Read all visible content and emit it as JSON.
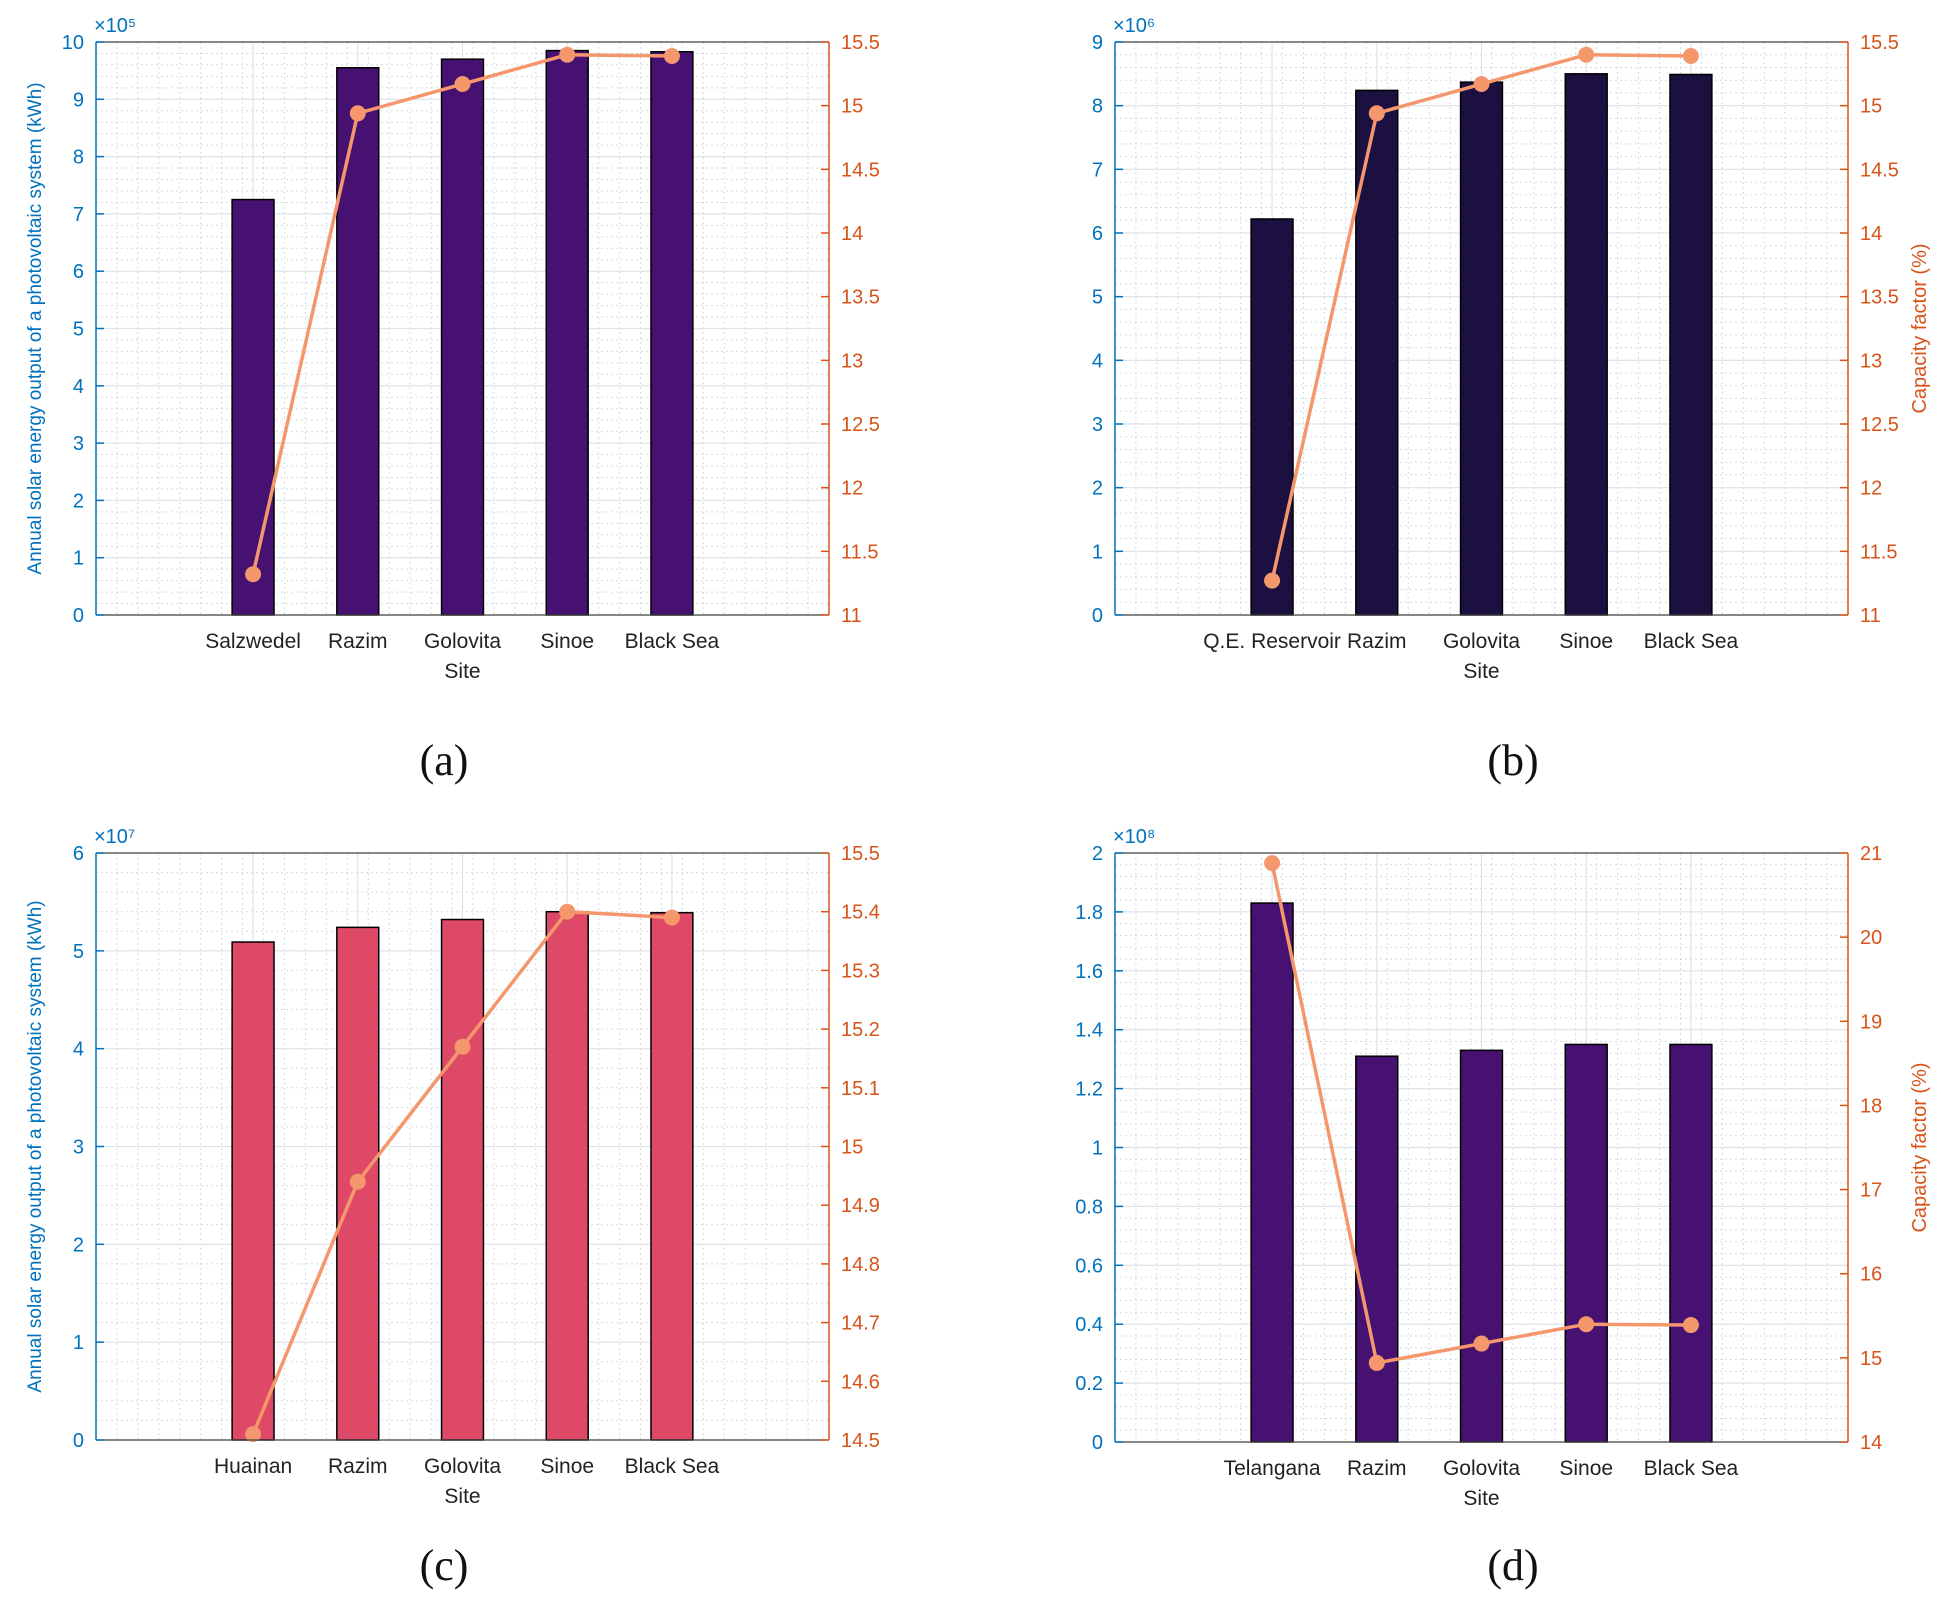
{
  "colors": {
    "left_axis": "#0072BD",
    "right_axis": "#D95319",
    "line": "#F4976C",
    "grid": "#c8d2dc",
    "text": "#222222"
  },
  "chart_data": [
    {
      "type": "bar",
      "panel_label": "(a)",
      "categories": [
        "Salzwedel",
        "Razim",
        "Golovita",
        "Sinoe",
        "Black Sea"
      ],
      "series": [
        {
          "name": "Annual solar energy output",
          "axis": "left",
          "values": [
            725000,
            955000,
            970000,
            985000,
            983000
          ]
        },
        {
          "name": "Capacity factor",
          "axis": "right",
          "type": "line",
          "values": [
            11.32,
            14.94,
            15.17,
            15.4,
            15.39
          ]
        }
      ],
      "bar_color": "#471172",
      "xlabel": "Site",
      "ylabel": "Annual solar energy output of a photovoltaic system (kWh)",
      "y2label": "",
      "exponent": "×10⁵",
      "ylim": [
        0,
        1000000
      ],
      "yscale": 100000,
      "yticks": [
        "0",
        "1",
        "2",
        "3",
        "4",
        "5",
        "6",
        "7",
        "8",
        "9",
        "10"
      ],
      "y2lim": [
        11,
        15.5
      ],
      "y2ticks": [
        "11",
        "11.5",
        "12",
        "12.5",
        "13",
        "13.5",
        "14",
        "14.5",
        "15",
        "15.5"
      ]
    },
    {
      "type": "bar",
      "panel_label": "(b)",
      "categories": [
        "Q.E. Reservoir",
        "Razim",
        "Golovita",
        "Sinoe",
        "Black Sea"
      ],
      "series": [
        {
          "name": "Annual solar energy output",
          "axis": "left",
          "values": [
            6220000,
            8240000,
            8370000,
            8500000,
            8490000
          ]
        },
        {
          "name": "Capacity factor",
          "axis": "right",
          "type": "line",
          "values": [
            11.27,
            14.94,
            15.17,
            15.4,
            15.39
          ]
        }
      ],
      "bar_color": "#1b1040",
      "xlabel": "Site",
      "ylabel": "",
      "y2label": "Capacity factor (%)",
      "exponent": "×10⁶",
      "ylim": [
        0,
        9000000
      ],
      "yscale": 1000000,
      "yticks": [
        "0",
        "1",
        "2",
        "3",
        "4",
        "5",
        "6",
        "7",
        "8",
        "9"
      ],
      "y2lim": [
        11,
        15.5
      ],
      "y2ticks": [
        "11",
        "11.5",
        "12",
        "12.5",
        "13",
        "13.5",
        "14",
        "14.5",
        "15",
        "15.5"
      ]
    },
    {
      "type": "bar",
      "panel_label": "(c)",
      "categories": [
        "Huainan",
        "Razim",
        "Golovita",
        "Sinoe",
        "Black Sea"
      ],
      "series": [
        {
          "name": "Annual solar energy output",
          "axis": "left",
          "values": [
            50900000,
            52400000,
            53200000,
            54000000,
            53900000
          ]
        },
        {
          "name": "Capacity factor",
          "axis": "right",
          "type": "line",
          "values": [
            14.51,
            14.94,
            15.17,
            15.4,
            15.39
          ]
        }
      ],
      "bar_color": "#DE4968",
      "xlabel": "Site",
      "ylabel": "Annual solar energy output of a photovoltaic system (kWh)",
      "y2label": "",
      "exponent": "×10⁷",
      "ylim": [
        0,
        60000000
      ],
      "yscale": 10000000,
      "yticks": [
        "0",
        "1",
        "2",
        "3",
        "4",
        "5",
        "6"
      ],
      "y2lim": [
        14.5,
        15.5
      ],
      "y2ticks": [
        "14.5",
        "14.6",
        "14.7",
        "14.8",
        "14.9",
        "15",
        "15.1",
        "15.2",
        "15.3",
        "15.4",
        "15.5"
      ]
    },
    {
      "type": "bar",
      "panel_label": "(d)",
      "categories": [
        "Telangana",
        "Razim",
        "Golovita",
        "Sinoe",
        "Black Sea"
      ],
      "series": [
        {
          "name": "Annual solar energy output",
          "axis": "left",
          "values": [
            183000000,
            131000000,
            133000000,
            135000000,
            135000000
          ]
        },
        {
          "name": "Capacity factor",
          "axis": "right",
          "type": "line",
          "values": [
            20.88,
            14.94,
            15.17,
            15.4,
            15.39
          ]
        }
      ],
      "bar_color": "#471172",
      "xlabel": "Site",
      "ylabel": "",
      "y2label": "Capacity factor (%)",
      "exponent": "×10⁸",
      "ylim": [
        0,
        200000000
      ],
      "yscale": 100000000,
      "yticks": [
        "0",
        "0.2",
        "0.4",
        "0.6",
        "0.8",
        "1",
        "1.2",
        "1.4",
        "1.6",
        "1.8",
        "2"
      ],
      "y2lim": [
        14,
        21
      ],
      "y2ticks": [
        "14",
        "15",
        "16",
        "17",
        "18",
        "19",
        "20",
        "21"
      ]
    }
  ]
}
